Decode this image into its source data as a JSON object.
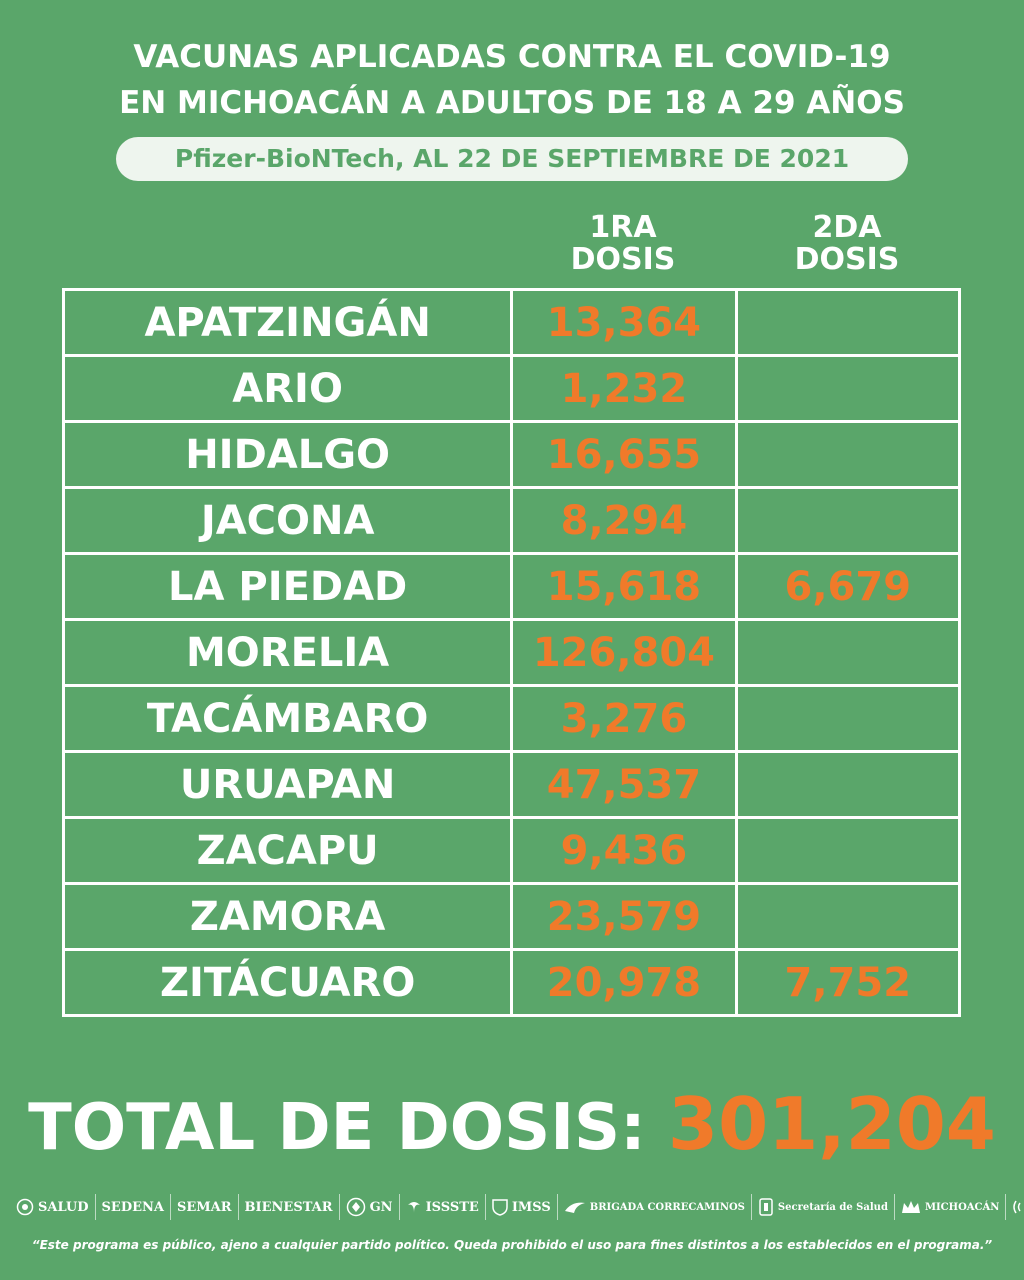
{
  "header": {
    "title_line1_a": "VACUNAS APLICADAS",
    "title_line1_b": "CONTRA EL COVID-19",
    "title_line2": "EN MICHOACÁN A ADULTOS DE 18 A 29 AÑOS",
    "subtitle": "Pfizer-BioNTech, AL 22 DE SEPTIEMBRE DE 2021"
  },
  "columns": {
    "first_dose": [
      "1RA",
      "DOSIS"
    ],
    "second_dose": [
      "2DA",
      "DOSIS"
    ]
  },
  "rows": [
    {
      "place": "APATZINGÁN",
      "dose1": "13,364",
      "dose2": ""
    },
    {
      "place": "ARIO",
      "dose1": "1,232",
      "dose2": ""
    },
    {
      "place": "HIDALGO",
      "dose1": "16,655",
      "dose2": ""
    },
    {
      "place": "JACONA",
      "dose1": "8,294",
      "dose2": ""
    },
    {
      "place": "LA PIEDAD",
      "dose1": "15,618",
      "dose2": "6,679"
    },
    {
      "place": "MORELIA",
      "dose1": "126,804",
      "dose2": ""
    },
    {
      "place": "TACÁMBARO",
      "dose1": "3,276",
      "dose2": ""
    },
    {
      "place": "URUAPAN",
      "dose1": "47,537",
      "dose2": ""
    },
    {
      "place": "ZACAPU",
      "dose1": "9,436",
      "dose2": ""
    },
    {
      "place": "ZAMORA",
      "dose1": "23,579",
      "dose2": ""
    },
    {
      "place": "ZITÁCUARO",
      "dose1": "20,978",
      "dose2": "7,752"
    }
  ],
  "total": {
    "label": "TOTAL DE DOSIS:",
    "value": "301,204"
  },
  "logos": [
    {
      "icon": "eagle-seal-icon",
      "label": "SALUD"
    },
    {
      "icon": "",
      "label": "SEDENA"
    },
    {
      "icon": "",
      "label": "SEMAR"
    },
    {
      "icon": "",
      "label": "BIENESTAR"
    },
    {
      "icon": "guard-seal-icon",
      "label": "GN"
    },
    {
      "icon": "eagle-icon",
      "label": "ISSSTE"
    },
    {
      "icon": "shield-icon",
      "label": "IMSS"
    },
    {
      "icon": "brigade-icon",
      "label": "BRIGADA CORRECAMINOS"
    },
    {
      "icon": "state-emblem-icon",
      "label": "Secretaría de Salud"
    },
    {
      "icon": "crown-icon",
      "label": "MICHOACÁN"
    },
    {
      "icon": "broadcast-icon",
      "label": ""
    }
  ],
  "disclaimer": "“Este programa es público, ajeno a cualquier partido político. Queda prohibido el uso para fines distintos a los establecidos en el programa.”",
  "colors": {
    "background": "#5aa66a",
    "accent": "#f07a2a",
    "text": "#ffffff"
  }
}
